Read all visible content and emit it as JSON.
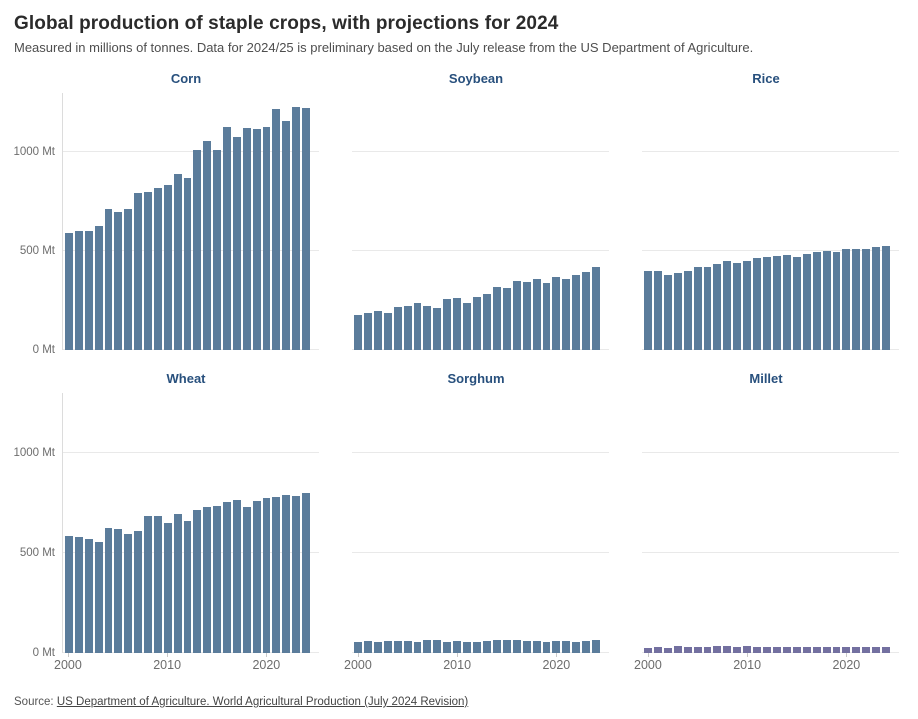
{
  "figure": {
    "title": "Global production of staple crops, with projections for 2024",
    "subtitle": "Measured in millions of tonnes. Data for 2024/25 is preliminary based on the July release from the US Department of Agriculture.",
    "source": {
      "label": "Source:",
      "link_text": "US Department of Agriculture. World Agricultural Production (July 2024 Revision)"
    }
  },
  "axis": {
    "y_ticks": [
      "0 Mt",
      "500 Mt",
      "1000 Mt"
    ],
    "x_ticks": [
      "2000",
      "2010",
      "2020"
    ]
  },
  "chart_data": {
    "type": "bar",
    "unit": "Mt",
    "layout": "2 rows x 3 columns of small-multiple bar charts; shared y scale; horizontal gridlines at 0, 500 and 1000 Mt; y labels only on left column; x labels only on bottom row",
    "years": [
      2000,
      2001,
      2002,
      2003,
      2004,
      2005,
      2006,
      2007,
      2008,
      2009,
      2010,
      2011,
      2012,
      2013,
      2014,
      2015,
      2016,
      2017,
      2018,
      2019,
      2020,
      2021,
      2022,
      2023,
      2024
    ],
    "ylim": [
      0,
      1300
    ],
    "gridlines_mt": [
      0,
      500,
      1000
    ],
    "x_tick_year_indices": [
      0,
      10,
      20
    ],
    "panels": [
      {
        "title": "Corn",
        "color": "#5b7c9b",
        "values": [
          590,
          601,
          603,
          627,
          715,
          699,
          713,
          793,
          799,
          819,
          835,
          890,
          869,
          1014,
          1057,
          1014,
          1127,
          1080,
          1124,
          1117,
          1129,
          1218,
          1156,
          1229,
          1225
        ]
      },
      {
        "title": "Soybean",
        "color": "#5b7c9b",
        "values": [
          176,
          185,
          197,
          186,
          216,
          221,
          237,
          221,
          212,
          260,
          264,
          240,
          269,
          283,
          320,
          313,
          348,
          342,
          361,
          339,
          368,
          360,
          378,
          395,
          422
        ]
      },
      {
        "title": "Rice",
        "color": "#5b7c9b",
        "values": [
          399,
          399,
          378,
          392,
          401,
          418,
          420,
          433,
          449,
          441,
          450,
          466,
          473,
          478,
          479,
          472,
          487,
          495,
          499,
          497,
          509,
          513,
          513,
          522,
          527
        ]
      },
      {
        "title": "Wheat",
        "color": "#5b7c9b",
        "values": [
          583,
          582,
          569,
          554,
          627,
          620,
          596,
          611,
          684,
          687,
          652,
          697,
          658,
          715,
          728,
          736,
          757,
          763,
          731,
          762,
          774,
          780,
          789,
          787,
          798
        ]
      },
      {
        "title": "Sorghum",
        "color": "#5b7c9b",
        "values": [
          56,
          58,
          53,
          59,
          58,
          59,
          56,
          64,
          65,
          57,
          60,
          54,
          57,
          61,
          67,
          66,
          63,
          58,
          59,
          57,
          62,
          61,
          57,
          59,
          63
        ]
      },
      {
        "title": "Millet",
        "color": "#7370a0",
        "values": [
          27,
          29,
          25,
          34,
          31,
          31,
          32,
          33,
          35,
          29,
          33,
          30,
          30,
          30,
          30,
          29,
          30,
          31,
          31,
          30,
          32,
          31,
          31,
          31,
          32
        ]
      }
    ]
  }
}
